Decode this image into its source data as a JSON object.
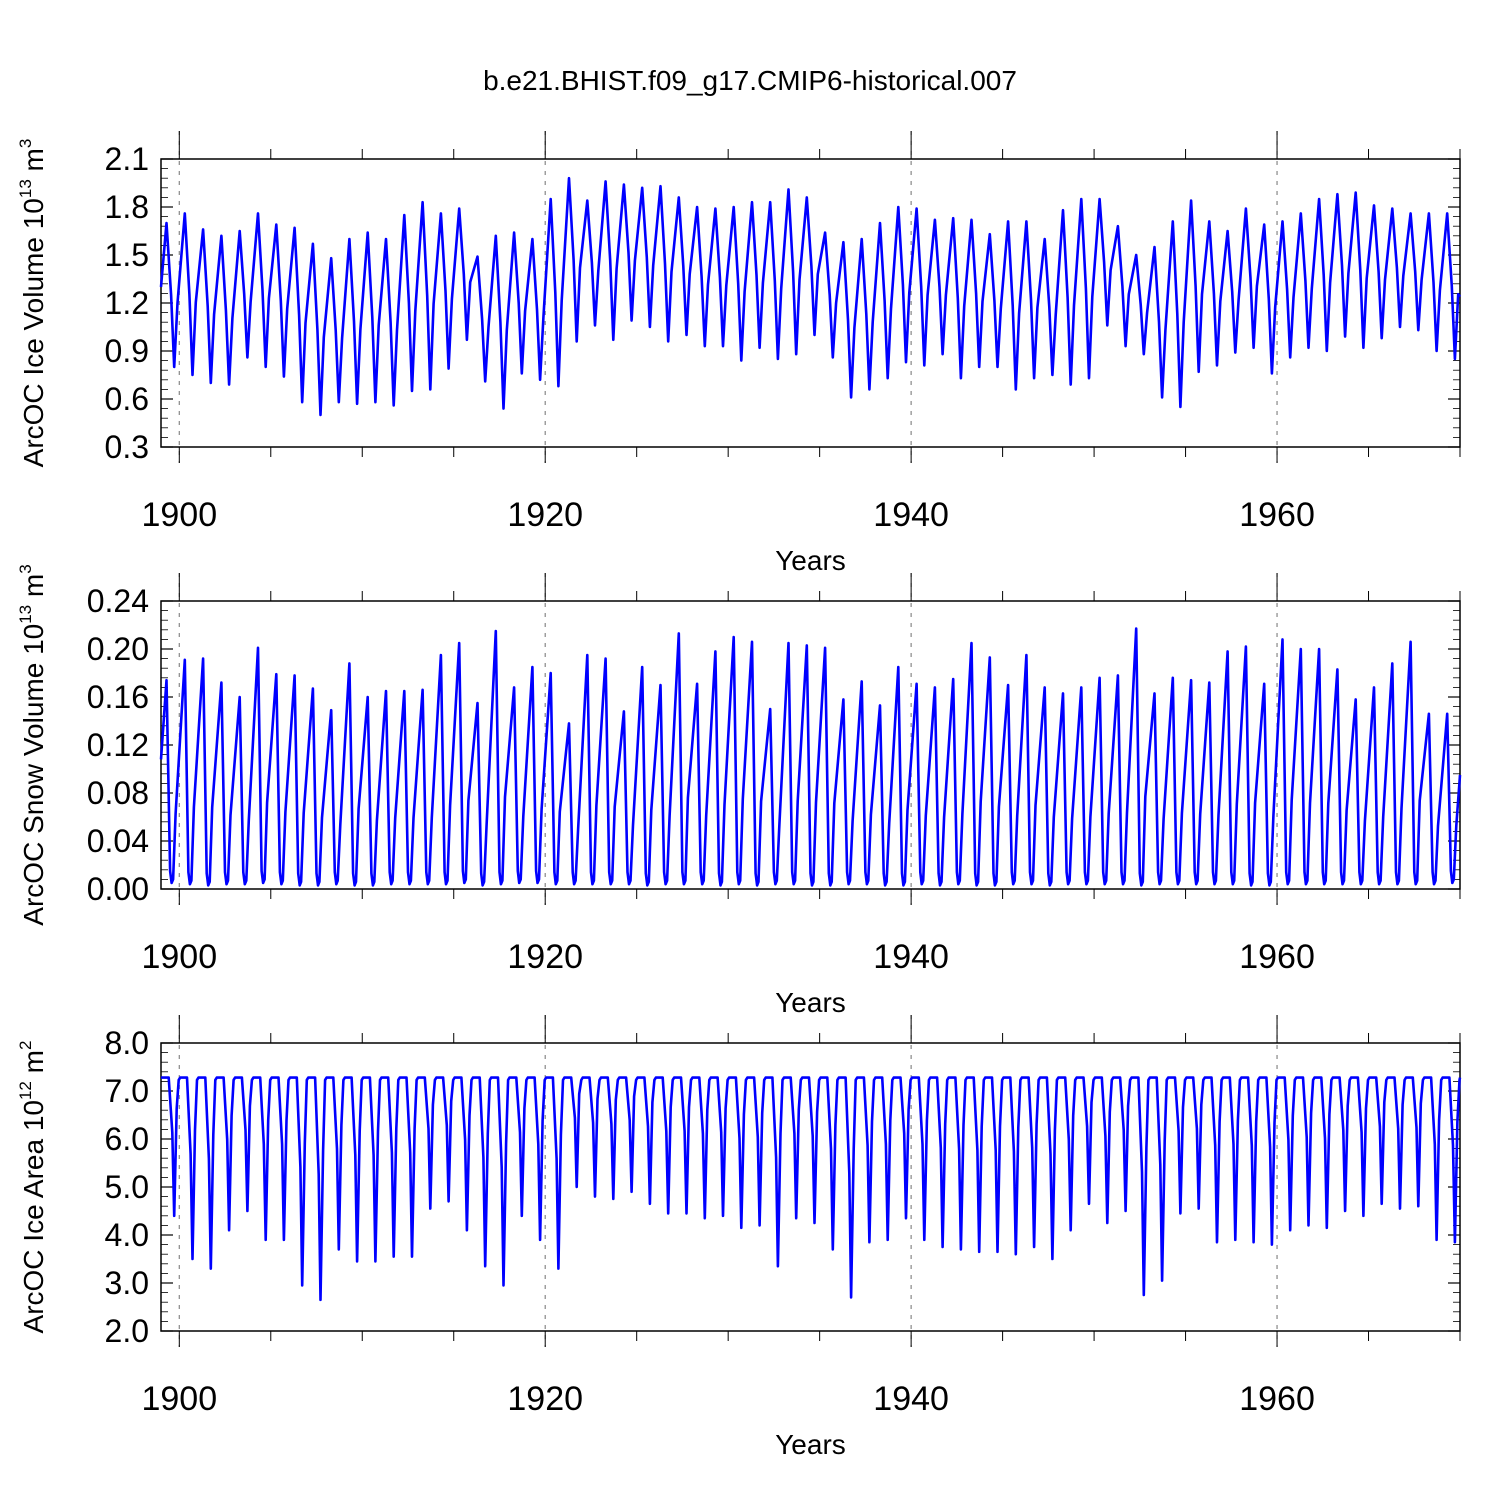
{
  "title": "b.e21.BHIST.f09_g17.CMIP6-historical.007",
  "series_color": "#0000ff",
  "chart_data": [
    {
      "type": "line",
      "name": "ice-volume",
      "ylabel": "ArcOC Ice Volume 10",
      "ylabel_exp": "13",
      "ylabel_unit": " m",
      "ylabel_unit_exp": "3",
      "xlabel": "Years",
      "xlim": [
        1899,
        1970
      ],
      "ylim": [
        0.3,
        2.1
      ],
      "yticks": [
        0.3,
        0.6,
        0.9,
        1.2,
        1.5,
        1.8,
        2.1
      ],
      "ytick_labels": [
        "0.3",
        "0.6",
        "0.9",
        "1.2",
        "1.5",
        "1.8",
        "2.1"
      ],
      "xticks": [
        1900,
        1920,
        1940,
        1960
      ],
      "xtick_labels": [
        "1900",
        "1920",
        "1940",
        "1960"
      ],
      "series_name": "ArcOC Ice Volume",
      "start_value": 1.3,
      "end_value": 1.24,
      "peak_month": 4,
      "trough_month": 9,
      "years": [
        1899,
        1900,
        1901,
        1902,
        1903,
        1904,
        1905,
        1906,
        1907,
        1908,
        1909,
        1910,
        1911,
        1912,
        1913,
        1914,
        1915,
        1916,
        1917,
        1918,
        1919,
        1920,
        1921,
        1922,
        1923,
        1924,
        1925,
        1926,
        1927,
        1928,
        1929,
        1930,
        1931,
        1932,
        1933,
        1934,
        1935,
        1936,
        1937,
        1938,
        1939,
        1940,
        1941,
        1942,
        1943,
        1944,
        1945,
        1946,
        1947,
        1948,
        1949,
        1950,
        1951,
        1952,
        1953,
        1954,
        1955,
        1956,
        1957,
        1958,
        1959,
        1960,
        1961,
        1962,
        1963,
        1964,
        1965,
        1966,
        1967,
        1968,
        1969
      ],
      "annual_max": [
        1.7,
        1.76,
        1.66,
        1.62,
        1.65,
        1.76,
        1.69,
        1.67,
        1.57,
        1.48,
        1.6,
        1.64,
        1.6,
        1.75,
        1.83,
        1.76,
        1.79,
        1.49,
        1.62,
        1.64,
        1.6,
        1.85,
        1.98,
        1.84,
        1.96,
        1.94,
        1.92,
        1.93,
        1.86,
        1.8,
        1.79,
        1.8,
        1.83,
        1.83,
        1.91,
        1.86,
        1.64,
        1.58,
        1.6,
        1.7,
        1.8,
        1.79,
        1.72,
        1.73,
        1.72,
        1.63,
        1.71,
        1.71,
        1.6,
        1.78,
        1.85,
        1.85,
        1.68,
        1.5,
        1.55,
        1.71,
        1.84,
        1.71,
        1.65,
        1.79,
        1.69,
        1.71,
        1.76,
        1.85,
        1.88,
        1.89,
        1.81,
        1.79,
        1.76,
        1.76,
        1.76
      ],
      "annual_min": [
        0.8,
        0.75,
        0.7,
        0.69,
        0.86,
        0.8,
        0.74,
        0.58,
        0.5,
        0.58,
        0.57,
        0.58,
        0.56,
        0.65,
        0.66,
        0.79,
        0.97,
        0.71,
        0.54,
        0.76,
        0.72,
        0.68,
        0.96,
        1.06,
        0.97,
        1.09,
        1.05,
        0.96,
        1.0,
        0.93,
        0.93,
        0.84,
        0.92,
        0.85,
        0.88,
        1.0,
        0.86,
        0.61,
        0.66,
        0.73,
        0.83,
        0.81,
        0.88,
        0.73,
        0.8,
        0.8,
        0.66,
        0.73,
        0.75,
        0.69,
        0.73,
        1.06,
        0.93,
        0.88,
        0.61,
        0.55,
        0.77,
        0.81,
        0.89,
        0.92,
        0.76,
        0.86,
        0.92,
        0.9,
        0.99,
        0.92,
        0.98,
        1.05,
        1.03,
        0.9,
        0.85
      ]
    },
    {
      "type": "line",
      "name": "snow-volume",
      "ylabel": "ArcOC Snow Volume 10",
      "ylabel_exp": "13",
      "ylabel_unit": " m",
      "ylabel_unit_exp": "3",
      "xlabel": "Years",
      "xlim": [
        1899,
        1970
      ],
      "ylim": [
        0.0,
        0.24
      ],
      "yticks": [
        0.0,
        0.04,
        0.08,
        0.12,
        0.16,
        0.2,
        0.24
      ],
      "ytick_labels": [
        "0.00",
        "0.04",
        "0.08",
        "0.12",
        "0.16",
        "0.20",
        "0.24"
      ],
      "xticks": [
        1900,
        1920,
        1940,
        1960
      ],
      "xtick_labels": [
        "1900",
        "1920",
        "1940",
        "1960"
      ],
      "series_name": "ArcOC Snow Volume",
      "start_value": 0.108,
      "end_value": 0.095,
      "peak_month": 4,
      "trough_month": 8,
      "years": [
        1899,
        1900,
        1901,
        1902,
        1903,
        1904,
        1905,
        1906,
        1907,
        1908,
        1909,
        1910,
        1911,
        1912,
        1913,
        1914,
        1915,
        1916,
        1917,
        1918,
        1919,
        1920,
        1921,
        1922,
        1923,
        1924,
        1925,
        1926,
        1927,
        1928,
        1929,
        1930,
        1931,
        1932,
        1933,
        1934,
        1935,
        1936,
        1937,
        1938,
        1939,
        1940,
        1941,
        1942,
        1943,
        1944,
        1945,
        1946,
        1947,
        1948,
        1949,
        1950,
        1951,
        1952,
        1953,
        1954,
        1955,
        1956,
        1957,
        1958,
        1959,
        1960,
        1961,
        1962,
        1963,
        1964,
        1965,
        1966,
        1967,
        1968,
        1969
      ],
      "annual_max": [
        0.174,
        0.191,
        0.192,
        0.172,
        0.16,
        0.201,
        0.179,
        0.178,
        0.167,
        0.149,
        0.188,
        0.16,
        0.165,
        0.165,
        0.166,
        0.195,
        0.205,
        0.155,
        0.215,
        0.168,
        0.185,
        0.18,
        0.138,
        0.195,
        0.192,
        0.148,
        0.185,
        0.17,
        0.213,
        0.171,
        0.198,
        0.21,
        0.206,
        0.15,
        0.205,
        0.203,
        0.201,
        0.158,
        0.173,
        0.153,
        0.185,
        0.171,
        0.168,
        0.175,
        0.205,
        0.193,
        0.17,
        0.195,
        0.168,
        0.163,
        0.168,
        0.176,
        0.178,
        0.217,
        0.163,
        0.176,
        0.174,
        0.172,
        0.198,
        0.202,
        0.171,
        0.208,
        0.2,
        0.2,
        0.183,
        0.158,
        0.168,
        0.188,
        0.206,
        0.146,
        0.146
      ],
      "annual_min": [
        0.005,
        0.004,
        0.003,
        0.004,
        0.004,
        0.005,
        0.004,
        0.003,
        0.003,
        0.004,
        0.003,
        0.003,
        0.004,
        0.004,
        0.004,
        0.004,
        0.005,
        0.003,
        0.004,
        0.005,
        0.005,
        0.004,
        0.004,
        0.004,
        0.004,
        0.004,
        0.003,
        0.004,
        0.004,
        0.004,
        0.003,
        0.004,
        0.003,
        0.004,
        0.004,
        0.003,
        0.003,
        0.004,
        0.004,
        0.003,
        0.003,
        0.004,
        0.003,
        0.004,
        0.003,
        0.003,
        0.004,
        0.004,
        0.003,
        0.004,
        0.004,
        0.004,
        0.004,
        0.003,
        0.004,
        0.004,
        0.004,
        0.004,
        0.004,
        0.003,
        0.003,
        0.004,
        0.004,
        0.004,
        0.004,
        0.004,
        0.004,
        0.004,
        0.004,
        0.004,
        0.005
      ]
    },
    {
      "type": "line",
      "name": "ice-area",
      "ylabel": "ArcOC Ice Area 10",
      "ylabel_exp": "12",
      "ylabel_unit": " m",
      "ylabel_unit_exp": "2",
      "xlabel": "Years",
      "xlim": [
        1899,
        1970
      ],
      "ylim": [
        2.0,
        8.0
      ],
      "yticks": [
        2.0,
        3.0,
        4.0,
        5.0,
        6.0,
        7.0,
        8.0
      ],
      "ytick_labels": [
        "2.0",
        "3.0",
        "4.0",
        "5.0",
        "6.0",
        "7.0",
        "8.0"
      ],
      "xticks": [
        1900,
        1920,
        1940,
        1960
      ],
      "xtick_labels": [
        "1900",
        "1920",
        "1940",
        "1960"
      ],
      "series_name": "ArcOC Ice Area",
      "start_value": 7.28,
      "end_value": 7.28,
      "peak_month": 3,
      "trough_month": 9,
      "years": [
        1899,
        1900,
        1901,
        1902,
        1903,
        1904,
        1905,
        1906,
        1907,
        1908,
        1909,
        1910,
        1911,
        1912,
        1913,
        1914,
        1915,
        1916,
        1917,
        1918,
        1919,
        1920,
        1921,
        1922,
        1923,
        1924,
        1925,
        1926,
        1927,
        1928,
        1929,
        1930,
        1931,
        1932,
        1933,
        1934,
        1935,
        1936,
        1937,
        1938,
        1939,
        1940,
        1941,
        1942,
        1943,
        1944,
        1945,
        1946,
        1947,
        1948,
        1949,
        1950,
        1951,
        1952,
        1953,
        1954,
        1955,
        1956,
        1957,
        1958,
        1959,
        1960,
        1961,
        1962,
        1963,
        1964,
        1965,
        1966,
        1967,
        1968,
        1969
      ],
      "annual_max": [
        7.28,
        7.28,
        7.28,
        7.28,
        7.28,
        7.28,
        7.28,
        7.28,
        7.28,
        7.28,
        7.28,
        7.28,
        7.28,
        7.28,
        7.28,
        7.28,
        7.28,
        7.28,
        7.28,
        7.28,
        7.28,
        7.28,
        7.28,
        7.28,
        7.28,
        7.28,
        7.28,
        7.28,
        7.28,
        7.28,
        7.28,
        7.28,
        7.28,
        7.28,
        7.28,
        7.28,
        7.28,
        7.28,
        7.28,
        7.28,
        7.28,
        7.28,
        7.28,
        7.28,
        7.28,
        7.28,
        7.28,
        7.28,
        7.28,
        7.28,
        7.28,
        7.28,
        7.28,
        7.28,
        7.28,
        7.28,
        7.28,
        7.28,
        7.28,
        7.28,
        7.28,
        7.28,
        7.28,
        7.28,
        7.28,
        7.28,
        7.28,
        7.28,
        7.28,
        7.28,
        7.28
      ],
      "annual_min": [
        4.4,
        3.5,
        3.3,
        4.1,
        4.5,
        3.9,
        3.9,
        2.95,
        2.65,
        3.7,
        3.45,
        3.45,
        3.55,
        3.55,
        4.55,
        4.7,
        4.1,
        3.35,
        2.95,
        4.4,
        3.9,
        3.3,
        5.0,
        4.8,
        4.75,
        4.9,
        4.65,
        4.45,
        4.45,
        4.35,
        4.4,
        4.15,
        4.2,
        3.35,
        4.35,
        4.25,
        3.7,
        2.7,
        3.85,
        3.9,
        4.35,
        3.9,
        3.75,
        3.7,
        3.65,
        3.65,
        3.6,
        3.75,
        3.5,
        4.1,
        4.65,
        4.25,
        4.5,
        2.75,
        3.05,
        4.45,
        4.55,
        3.85,
        3.9,
        3.85,
        3.8,
        4.1,
        4.2,
        4.15,
        4.5,
        4.4,
        4.65,
        4.55,
        4.6,
        3.9,
        3.85
      ]
    }
  ]
}
